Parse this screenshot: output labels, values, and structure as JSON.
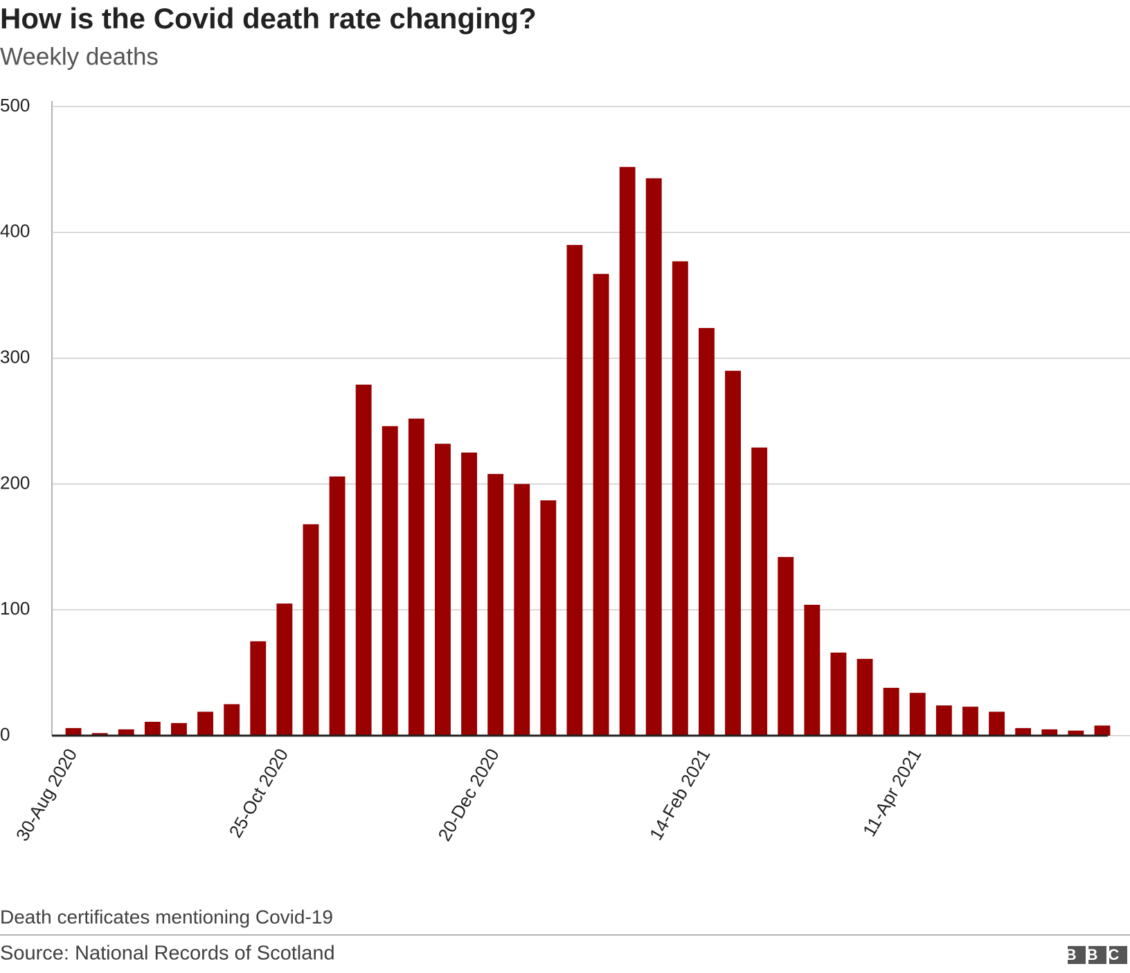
{
  "chart_data": {
    "type": "bar",
    "title": "How is the Covid death rate changing?",
    "subtitle": "Weekly deaths",
    "categories": [
      "30-Aug 2020",
      null,
      null,
      null,
      null,
      null,
      null,
      null,
      "25-Oct 2020",
      null,
      null,
      null,
      null,
      null,
      null,
      null,
      "20-Dec 2020",
      null,
      null,
      null,
      null,
      null,
      null,
      null,
      "14-Feb 2021",
      null,
      null,
      null,
      null,
      null,
      null,
      null,
      "11-Apr 2021",
      null,
      null,
      null,
      null,
      null,
      null,
      null
    ],
    "values": [
      6,
      2,
      5,
      11,
      10,
      19,
      25,
      75,
      105,
      168,
      206,
      279,
      246,
      252,
      232,
      225,
      208,
      200,
      187,
      390,
      367,
      452,
      443,
      377,
      324,
      290,
      229,
      142,
      104,
      66,
      61,
      38,
      34,
      24,
      23,
      19,
      6,
      5,
      4,
      8
    ],
    "color": "#990000",
    "ylim": [
      0,
      500
    ],
    "yticks": [
      0,
      100,
      200,
      300,
      400,
      500
    ],
    "grid": true,
    "note": "Death certificates mentioning Covid-19",
    "source": "Source: National Records of Scotland",
    "logo": "BBC"
  }
}
